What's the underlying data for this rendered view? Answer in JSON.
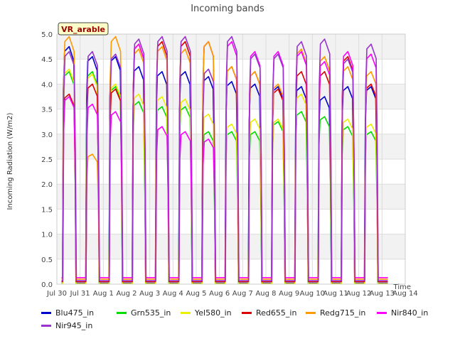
{
  "chart_data": {
    "type": "line",
    "title": "Incoming bands",
    "ylabel": "Incoming Radiation (W/m2)",
    "xlabel": "Time",
    "annotation": "VR_arable",
    "ylim": [
      0,
      5.0
    ],
    "yticks": [
      0.0,
      0.5,
      1.0,
      1.5,
      2.0,
      2.5,
      3.0,
      3.5,
      4.0,
      4.5,
      5.0
    ],
    "ytick_labels": [
      "0.0",
      "0.5",
      "1.0",
      "1.5",
      "2.0",
      "2.5",
      "3.0",
      "3.5",
      "4.0",
      "4.5",
      "5.0"
    ],
    "xlim": [
      "2023-07-30",
      "2023-08-14"
    ],
    "xtick_labels": [
      "Jul 30",
      "Jul 31",
      "Aug 1",
      "Aug 2",
      "Aug 3",
      "Aug 4",
      "Aug 5",
      "Aug 6",
      "Aug 7",
      "Aug 8",
      "Aug 9",
      "Aug 10",
      "Aug 11",
      "Aug 12",
      "Aug 13",
      "Aug 14"
    ],
    "grid": true,
    "legend_position": "bottom",
    "day_start": "2023-07-30",
    "series": [
      {
        "name": "Blu475_in",
        "color": "#0000cc",
        "noon_peaks": [
          4.75,
          4.55,
          4.55,
          4.35,
          4.25,
          4.25,
          4.15,
          4.05,
          4.0,
          3.95,
          3.95,
          3.75,
          3.95,
          3.95
        ],
        "night_value": 0.02
      },
      {
        "name": "Grn535_in",
        "color": "#00dd00",
        "noon_peaks": [
          4.25,
          4.25,
          3.95,
          3.65,
          3.55,
          3.55,
          3.05,
          3.05,
          3.05,
          3.25,
          3.45,
          3.35,
          3.15,
          3.05
        ],
        "night_value": 0.01
      },
      {
        "name": "Yel580_in",
        "color": "#eeee00",
        "noon_peaks": [
          4.3,
          4.2,
          4.0,
          3.8,
          3.75,
          3.7,
          3.4,
          3.2,
          3.3,
          3.3,
          3.8,
          4.55,
          3.3,
          3.2
        ],
        "night_value": 0.01
      },
      {
        "name": "Red655_in",
        "color": "#dd0000",
        "noon_peaks": [
          3.8,
          4.0,
          3.9,
          4.8,
          4.85,
          4.85,
          4.85,
          4.35,
          4.25,
          3.9,
          4.25,
          4.25,
          4.55,
          4.0
        ],
        "night_value": 0.05
      },
      {
        "name": "Redg715_in",
        "color": "#ff9900",
        "noon_peaks": [
          4.95,
          2.6,
          4.95,
          4.7,
          4.75,
          4.7,
          4.85,
          4.35,
          4.25,
          4.0,
          4.7,
          4.55,
          4.35,
          4.25
        ],
        "night_value": 0.1
      },
      {
        "name": "Nir840_in",
        "color": "#ff00ff",
        "noon_peaks": [
          3.75,
          3.6,
          3.45,
          4.8,
          3.15,
          3.05,
          2.9,
          4.85,
          4.65,
          4.65,
          4.65,
          4.45,
          4.65,
          4.6
        ],
        "night_value": 0.13
      },
      {
        "name": "Nir945_in",
        "color": "#9933cc",
        "noon_peaks": [
          4.65,
          4.65,
          4.6,
          4.9,
          4.95,
          4.95,
          4.3,
          4.95,
          4.6,
          4.6,
          4.85,
          4.9,
          4.5,
          4.8
        ],
        "night_value": 0.07
      }
    ]
  }
}
